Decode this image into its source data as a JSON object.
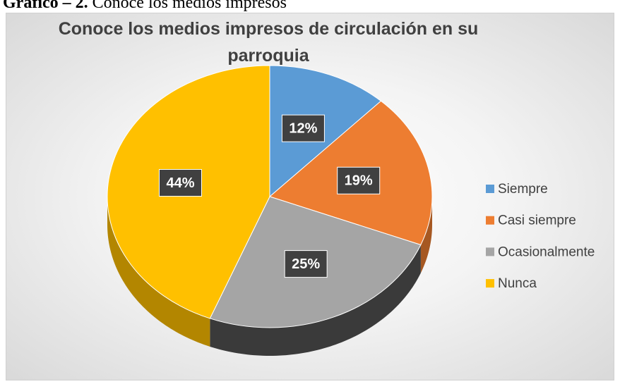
{
  "caption": {
    "label": "Gráfico – 2.",
    "text": "Conoce los medios impresos"
  },
  "chart_data": {
    "type": "pie",
    "title": "Conoce los medios impresos de circulación en su parroquia",
    "categories": [
      "Siempre",
      "Casi siempre",
      "Ocasionalmente",
      "Nunca"
    ],
    "values": [
      12,
      19,
      25,
      44
    ],
    "value_labels": [
      "12%",
      "19%",
      "25%",
      "44%"
    ],
    "colors": [
      "#5b9bd5",
      "#ed7d31",
      "#a5a5a5",
      "#ffc000"
    ],
    "legend": "right"
  }
}
